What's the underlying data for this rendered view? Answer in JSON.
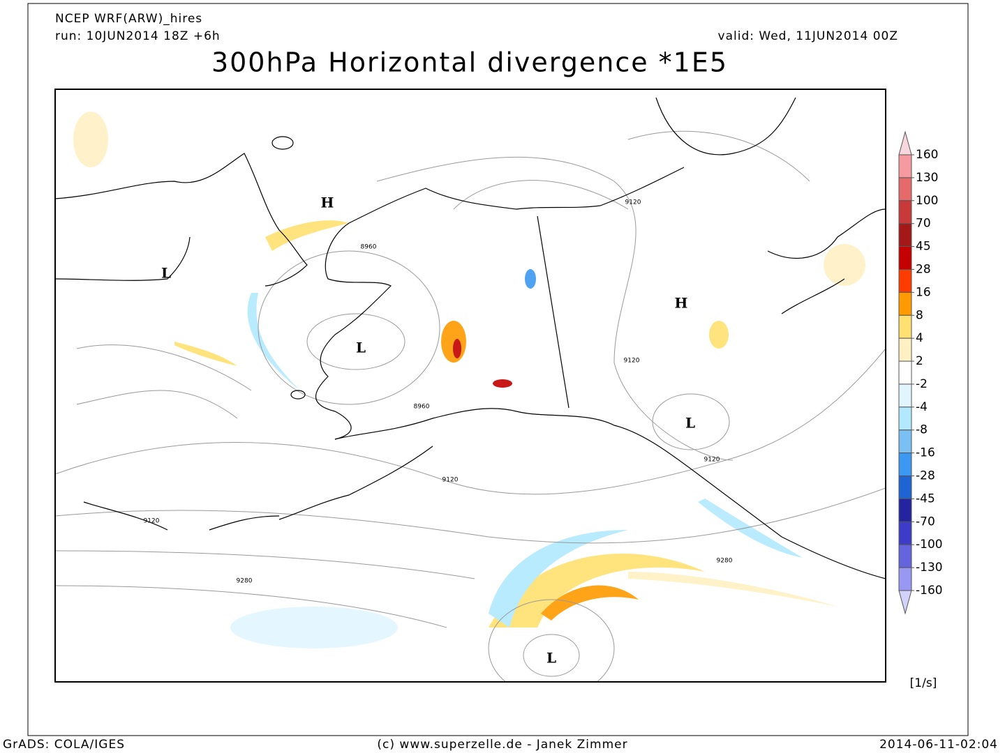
{
  "header": {
    "model": "NCEP WRF(ARW)_hires",
    "run": "run: 10JUN2014 18Z +6h",
    "valid": "valid: Wed, 11JUN2014 00Z"
  },
  "title": "300hPa Horizontal divergence *1E5",
  "map": {
    "pressure_centers": [
      "H",
      "L",
      "H",
      "L",
      "L",
      "L"
    ],
    "contour_labels": [
      8960,
      8960,
      9120,
      9120,
      9120,
      9120,
      9120,
      9280,
      9280
    ]
  },
  "colorbar": {
    "labels": [
      160,
      130,
      100,
      70,
      45,
      28,
      16,
      8,
      4,
      2,
      -2,
      -4,
      -8,
      -16,
      -28,
      -45,
      -70,
      -100,
      -130,
      -160
    ],
    "colors": [
      "#f8d6de",
      "#f59a9f",
      "#e66a6a",
      "#c83a3a",
      "#a51818",
      "#c40000",
      "#ff3c00",
      "#ff9a00",
      "#ffe070",
      "#fff1c4",
      "#ffffff",
      "#e1f5ff",
      "#b2e9ff",
      "#7ac0f2",
      "#3c98f0",
      "#1e64d2",
      "#2424a0",
      "#3c3cc8",
      "#6464dc",
      "#9898f2",
      "#d2d2fa"
    ],
    "unit": "[1/s]"
  },
  "footer": {
    "left": "GrADS: COLA/IGES",
    "center": "(c) www.superzelle.de - Janek Zimmer",
    "right": "2014-06-11-02:04"
  }
}
